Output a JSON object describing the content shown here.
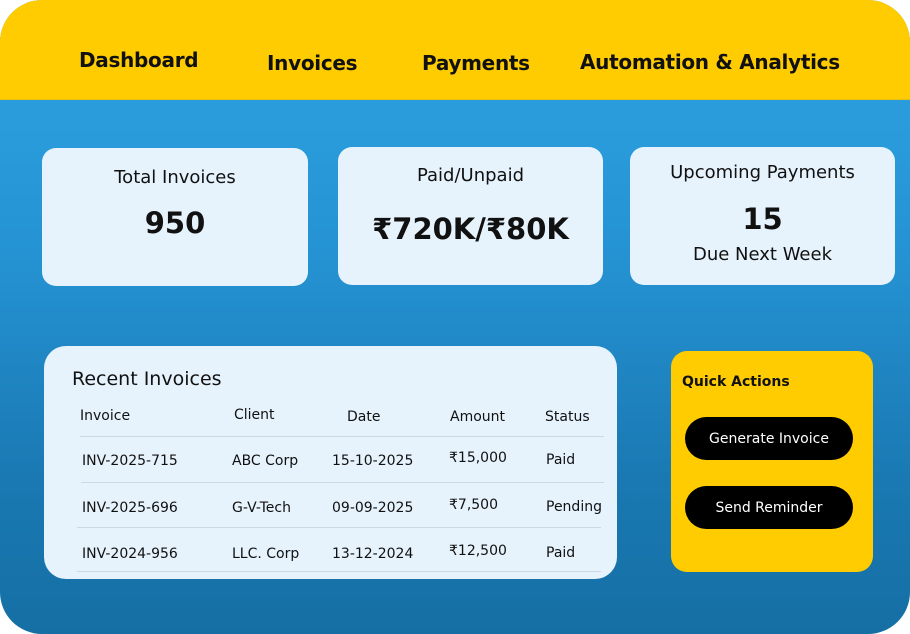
{
  "nav": [
    "Dashboard",
    "Invoices",
    "Payments",
    "Automation & Analytics"
  ],
  "cards": {
    "total": {
      "title": "Total  Invoices",
      "value": "950"
    },
    "paid": {
      "title": "Paid/Unpaid",
      "value": "₹720K/₹80K"
    },
    "upcoming": {
      "title": "Upcoming Payments",
      "value": "15",
      "subtitle": "Due Next Week"
    }
  },
  "recent": {
    "title": "Recent Invoices",
    "headers": [
      "Invoice",
      "Client",
      "Date",
      "Amount",
      "Status"
    ],
    "rows": [
      [
        "INV-2025-715",
        "ABC Corp",
        "15-10-2025",
        "₹15,000",
        "Paid"
      ],
      [
        "INV-2025-696",
        "G-V-Tech",
        "09-09-2025",
        "₹7,500",
        "Pending"
      ],
      [
        "INV-2024-956",
        "LLC. Corp",
        "13-12-2024",
        "₹12,500",
        "Paid"
      ]
    ]
  },
  "quick_actions": {
    "title": "Quick Actions",
    "buttons": [
      "Generate Invoice",
      "Send Reminder"
    ]
  },
  "colors": {
    "header": "#fecc00",
    "background_top": "#2ea3e3",
    "background_bottom": "#156fa4",
    "card": "#e6f3fc",
    "button": "#000000"
  }
}
